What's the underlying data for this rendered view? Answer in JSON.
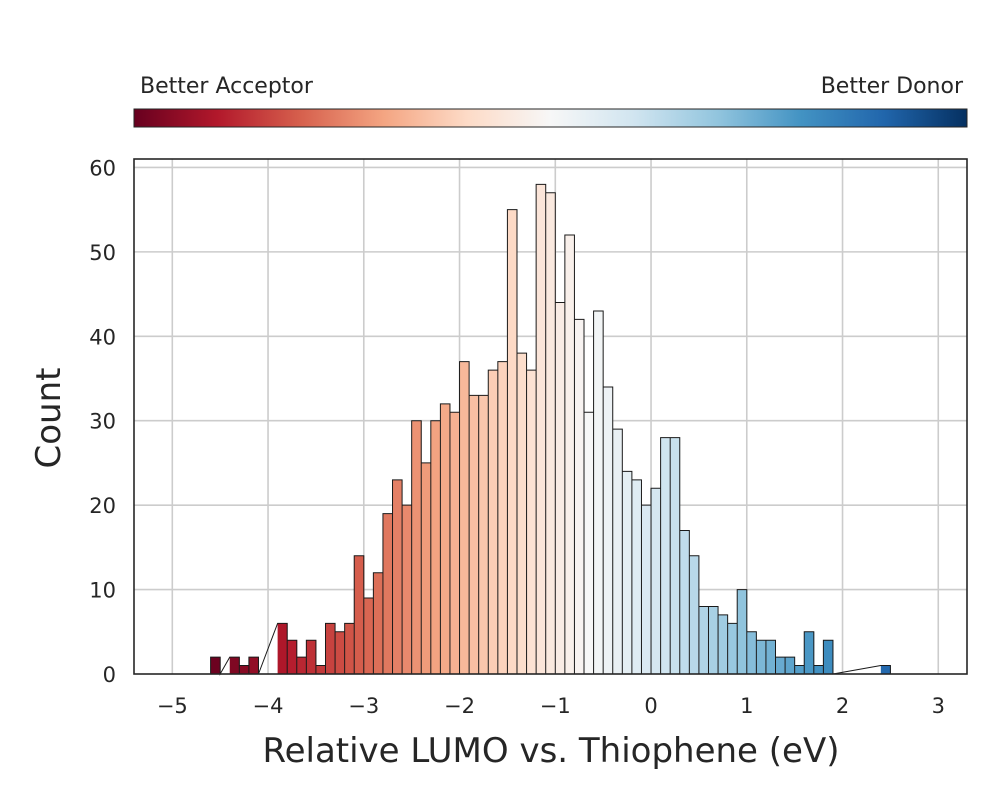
{
  "chart_data": {
    "type": "bar",
    "histogram": true,
    "xlabel": "Relative LUMO vs. Thiophene (eV)",
    "ylabel": "Count",
    "xlim": [
      -5.4,
      3.3
    ],
    "ylim": [
      0,
      61
    ],
    "bin_width": 0.1,
    "bin_start": -4.6,
    "counts": [
      2,
      0,
      2,
      1,
      2,
      0,
      0,
      6,
      4,
      2,
      4,
      1,
      6,
      5,
      6,
      14,
      9,
      12,
      19,
      23,
      20,
      30,
      25,
      30,
      32,
      31,
      37,
      33,
      33,
      36,
      37,
      55,
      38,
      36,
      58,
      57,
      44,
      52,
      42,
      31,
      43,
      34,
      29,
      24,
      23,
      20,
      22,
      28,
      28,
      17,
      14,
      8,
      8,
      7,
      6,
      10,
      5,
      4,
      4,
      2,
      2,
      1,
      5,
      1,
      4,
      0,
      0,
      0,
      0,
      0,
      1
    ],
    "x_ticks": [
      -5,
      -4,
      -3,
      -2,
      -1,
      0,
      1,
      2,
      3
    ],
    "x_tick_labels": [
      "−5",
      "−4",
      "−3",
      "−2",
      "−1",
      "0",
      "1",
      "2",
      "3"
    ],
    "y_ticks": [
      0,
      10,
      20,
      30,
      40,
      50,
      60
    ],
    "y_tick_labels": [
      "0",
      "10",
      "20",
      "30",
      "40",
      "50",
      "60"
    ],
    "grid": true,
    "colormap": "RdBu",
    "color_range": [
      -4.6,
      3.3
    ],
    "colorbar": {
      "left_label": "Better Acceptor",
      "right_label": "Better Donor",
      "stops": [
        "#67001f",
        "#b2182b",
        "#d6604d",
        "#f4a582",
        "#fddbc7",
        "#f7f7f7",
        "#d1e5f0",
        "#92c5de",
        "#4393c3",
        "#2166ac",
        "#053061"
      ]
    },
    "colors": {
      "grid": "#cccccc",
      "frame": "#262626",
      "edge": "#1a1a1a"
    }
  }
}
